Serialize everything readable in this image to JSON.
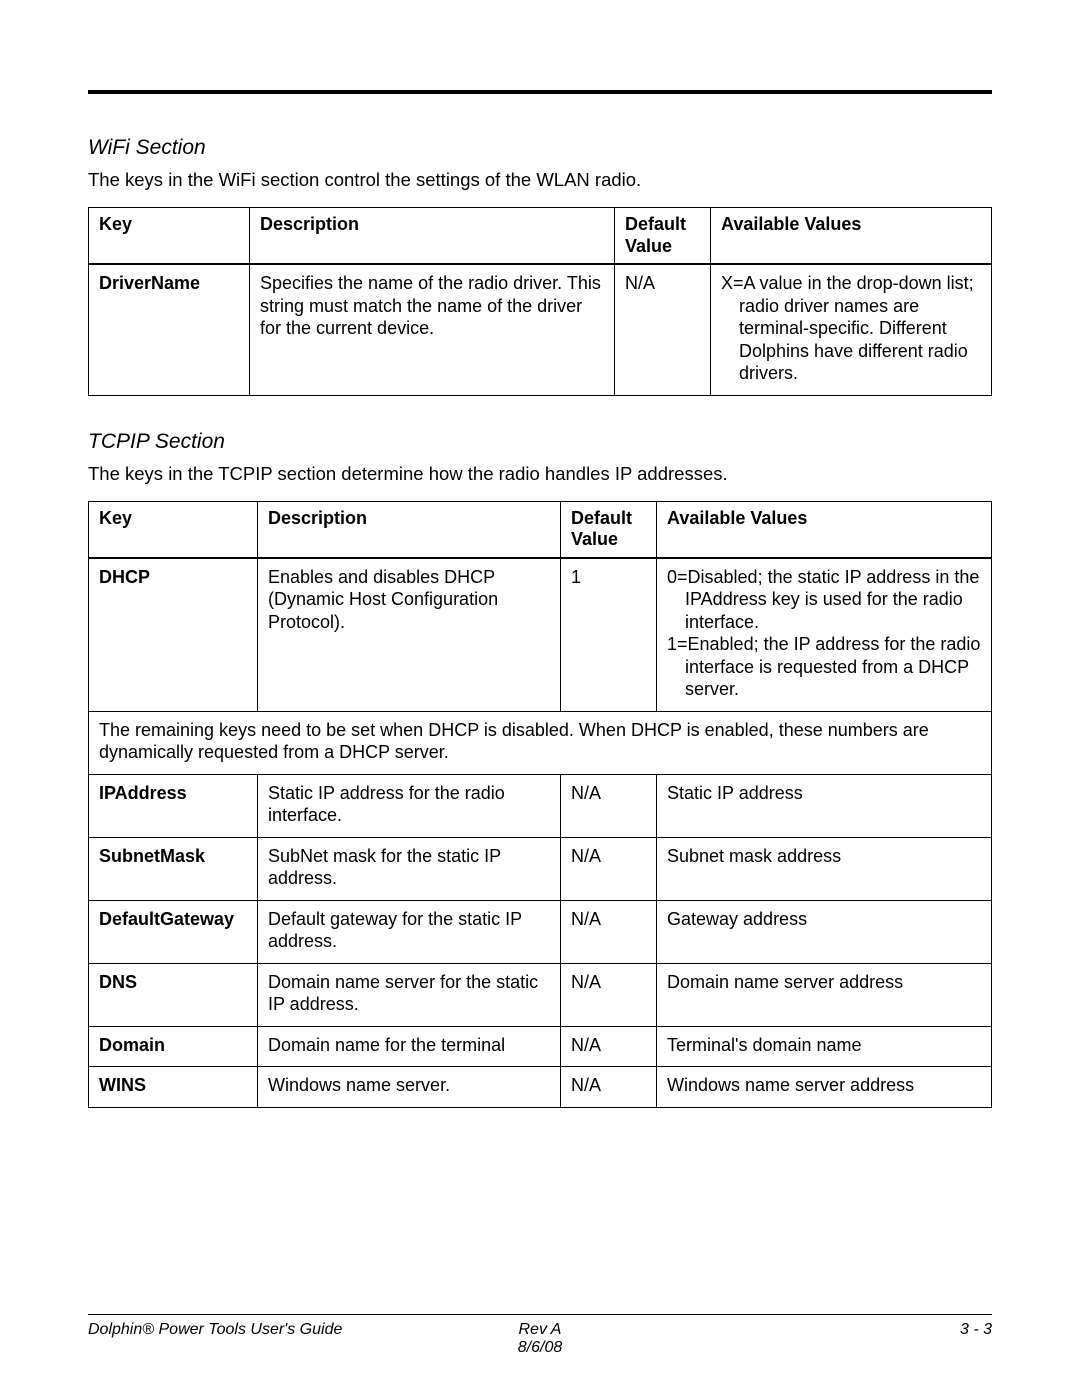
{
  "wifi": {
    "title": "WiFi Section",
    "intro": "The keys in the WiFi section control the settings of the WLAN radio.",
    "columns": [
      "Key",
      "Description",
      "Default Value",
      "Available Values"
    ],
    "rows": [
      {
        "key": "DriverName",
        "desc": "Specifies the name of the radio driver. This string must match the name of the driver for the current device.",
        "default": "N/A",
        "avail": "X=A value in the drop-down list; radio driver names are terminal-specific. Different Dolphins have different radio drivers."
      }
    ]
  },
  "tcpip": {
    "title": "TCPIP Section",
    "intro": "The keys in the TCPIP section determine how the radio handles IP addresses.",
    "columns": [
      "Key",
      "Description",
      "Default Value",
      "Available Values"
    ],
    "dhcp": {
      "key": "DHCP",
      "desc": "Enables and disables DHCP (Dynamic Host Configuration Protocol).",
      "default": "1",
      "avail0": "0=Disabled; the static IP address in the IPAddress key is used for the radio interface.",
      "avail1": "1=Enabled; the IP address for the radio interface is requested from a DHCP server."
    },
    "note": "The remaining keys need to be set when DHCP is disabled. When DHCP is enabled, these numbers are dynamically requested from a DHCP server.",
    "rows": [
      {
        "key": "IPAddress",
        "desc": "Static IP address for the radio interface.",
        "default": "N/A",
        "avail": "Static IP address"
      },
      {
        "key": "SubnetMask",
        "desc": "SubNet mask for the static IP address.",
        "default": "N/A",
        "avail": "Subnet mask address"
      },
      {
        "key": "DefaultGateway",
        "desc": "Default gateway for the static IP address.",
        "default": "N/A",
        "avail": "Gateway address"
      },
      {
        "key": "DNS",
        "desc": "Domain name server for the static IP address.",
        "default": "N/A",
        "avail": "Domain name server address"
      },
      {
        "key": "Domain",
        "desc": "Domain name for the terminal",
        "default": "N/A",
        "avail": "Terminal's domain name"
      },
      {
        "key": "WINS",
        "desc": "Windows name server.",
        "default": "N/A",
        "avail": "Windows name server address"
      }
    ]
  },
  "footer": {
    "left": "Dolphin® Power Tools User's Guide",
    "rev": "Rev A",
    "date": "8/6/08",
    "page": "3 - 3"
  }
}
